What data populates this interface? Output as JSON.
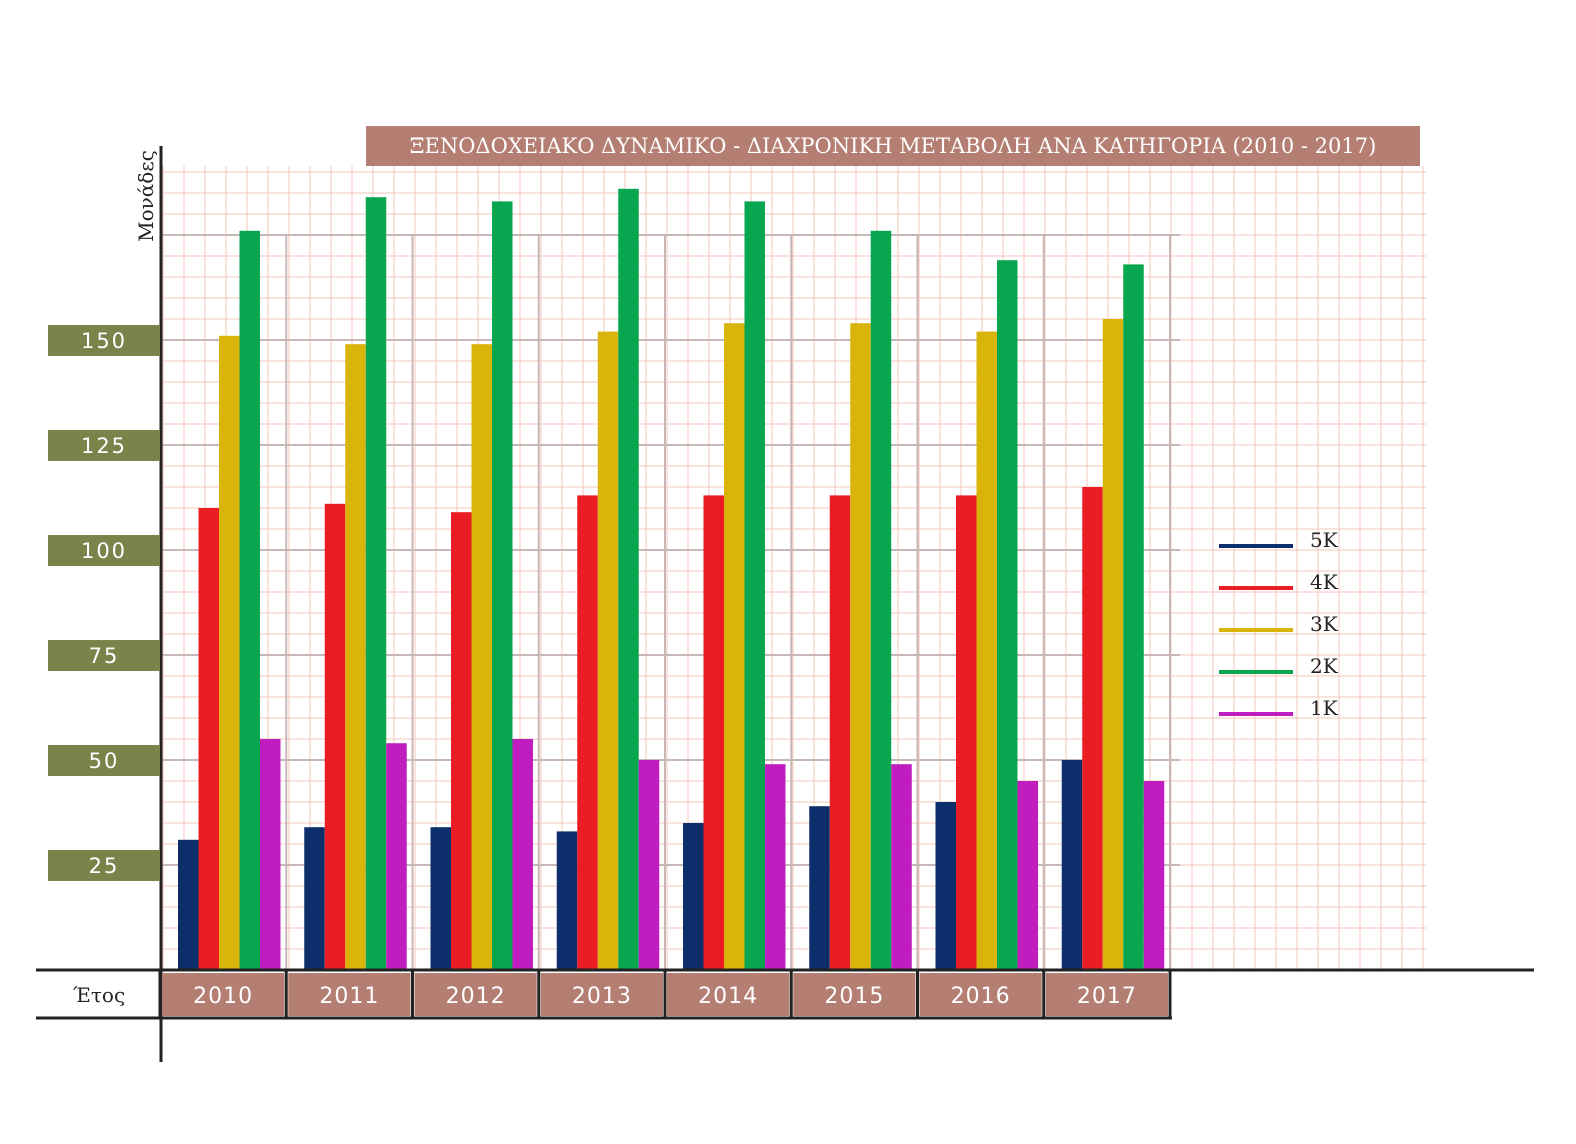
{
  "chart_data": {
    "type": "bar",
    "title": "ΞΕΝΟΔΟΧΕΙΑΚΟ ΔΥΝΑΜΙΚΟ - ΔΙΑΧΡΟΝΙΚΗ ΜΕΤΑΒΟΛΗ ΑΝΑ ΚΑΤΗΓΟΡΙΑ (2010 - 2017)",
    "ylabel": "Μονάδες",
    "xlabel": "Έτος",
    "categories": [
      "2010",
      "2011",
      "2012",
      "2013",
      "2014",
      "2015",
      "2016",
      "2017"
    ],
    "yticks": [
      "25",
      "50",
      "75",
      "100",
      "125",
      "150"
    ],
    "ylim": [
      0,
      190
    ],
    "grid": true,
    "legend_position": "right",
    "series": [
      {
        "name": "5K",
        "color": "#0c2f6b",
        "values": [
          31,
          34,
          34,
          33,
          35,
          39,
          40,
          50
        ]
      },
      {
        "name": "4K",
        "color": "#ea1c24",
        "values": [
          110,
          111,
          109,
          113,
          113,
          113,
          113,
          115
        ]
      },
      {
        "name": "3K",
        "color": "#d9b40a",
        "values": [
          151,
          149,
          149,
          152,
          154,
          154,
          152,
          155
        ]
      },
      {
        "name": "2K",
        "color": "#07a64f",
        "values": [
          176,
          184,
          183,
          186,
          183,
          176,
          169,
          168
        ]
      },
      {
        "name": "1K",
        "color": "#c11cbf",
        "values": [
          55,
          54,
          55,
          50,
          49,
          49,
          45,
          45
        ]
      }
    ]
  },
  "colors": {
    "tick_label_bg": "#78844a",
    "year_label_bg": "#b47e72",
    "grid_fine": "#f3c7b8",
    "grid_major": "#c8b7b7",
    "axis": "#222222"
  }
}
